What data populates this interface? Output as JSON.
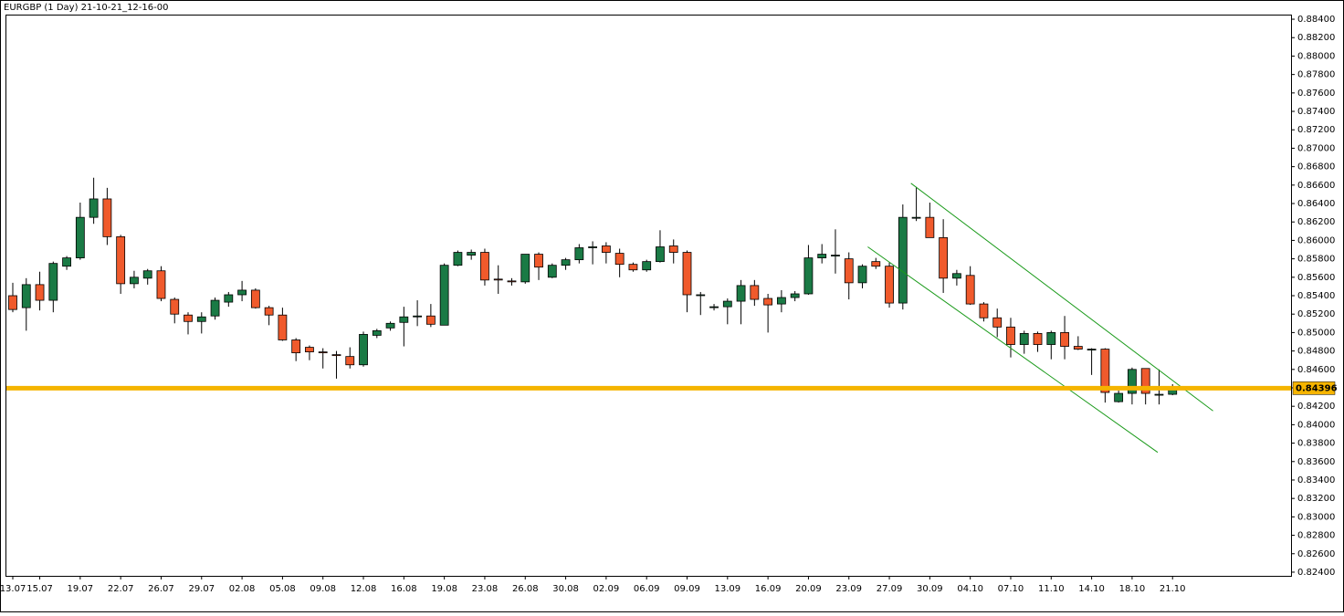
{
  "chart_data": {
    "type": "candlestick",
    "title": "EURGBP (1 Day) 21-10-21_12-16-00",
    "categories": [
      "13.07",
      null,
      "15.07",
      null,
      null,
      "19.07",
      null,
      null,
      "22.07",
      null,
      null,
      "26.07",
      null,
      null,
      "29.07",
      null,
      null,
      "02.08",
      null,
      null,
      "05.08",
      null,
      null,
      "09.08",
      null,
      null,
      "12.08",
      null,
      null,
      "16.08",
      null,
      null,
      "19.08",
      null,
      null,
      "23.08",
      null,
      null,
      "26.08",
      null,
      null,
      "30.08",
      null,
      null,
      "02.09",
      null,
      null,
      "06.09",
      null,
      null,
      "09.09",
      null,
      null,
      "13.09",
      null,
      null,
      "16.09",
      null,
      null,
      "20.09",
      null,
      null,
      "23.09",
      null,
      null,
      "27.09",
      null,
      null,
      "30.09",
      null,
      null,
      "04.10",
      null,
      null,
      "07.10",
      null,
      null,
      "11.10",
      null,
      null,
      "14.10",
      null,
      null,
      "18.10",
      null,
      null,
      "21.10"
    ],
    "open": [
      0.854,
      0.8527,
      0.8552,
      0.8535,
      0.8572,
      0.8581,
      0.8625,
      0.8645,
      0.8604,
      0.8553,
      0.8559,
      0.8567,
      0.8536,
      0.8519,
      0.8512,
      0.8518,
      0.8533,
      0.8541,
      0.8546,
      0.8527,
      0.8519,
      0.8492,
      0.8484,
      0.8479,
      0.8476,
      0.8474,
      0.8465,
      0.8497,
      0.8505,
      0.8511,
      0.8518,
      0.8518,
      0.8508,
      0.8573,
      0.8584,
      0.8587,
      0.8558,
      0.8556,
      0.8555,
      0.8585,
      0.856,
      0.8573,
      0.8579,
      0.8593,
      0.8594,
      0.8586,
      0.8574,
      0.8568,
      0.8577,
      0.8594,
      0.8587,
      0.8541,
      0.8528,
      0.8528,
      0.8534,
      0.8551,
      0.8537,
      0.8531,
      0.8538,
      0.8542,
      0.8581,
      0.8584,
      0.858,
      0.8554,
      0.8577,
      0.8572,
      0.8532,
      0.8625,
      0.8625,
      0.8603,
      0.8559,
      0.8562,
      0.8531,
      0.8516,
      0.8506,
      0.8487,
      0.8499,
      0.8487,
      0.85,
      0.8485,
      0.8482,
      0.8482,
      0.8425,
      0.8434,
      0.8461,
      0.8433,
      0.8433
    ],
    "high": [
      0.8554,
      0.8559,
      0.8566,
      0.8577,
      0.8583,
      0.8641,
      0.8668,
      0.8657,
      0.8606,
      0.8567,
      0.8569,
      0.8572,
      0.8538,
      0.8522,
      0.8522,
      0.8538,
      0.8544,
      0.8556,
      0.8548,
      0.8529,
      0.8527,
      0.8494,
      0.8486,
      0.8483,
      0.848,
      0.8484,
      0.8501,
      0.8504,
      0.8512,
      0.8528,
      0.8535,
      0.8531,
      0.8575,
      0.8589,
      0.859,
      0.8591,
      0.8573,
      0.8559,
      0.8585,
      0.8587,
      0.8575,
      0.8581,
      0.8596,
      0.8599,
      0.8598,
      0.8591,
      0.8576,
      0.8579,
      0.8611,
      0.8601,
      0.8589,
      0.8544,
      0.8531,
      0.8537,
      0.8557,
      0.8557,
      0.8542,
      0.8546,
      0.8545,
      0.8595,
      0.8596,
      0.8612,
      0.8587,
      0.8574,
      0.8581,
      0.8576,
      0.8639,
      0.8658,
      0.8641,
      0.8623,
      0.8568,
      0.8572,
      0.8533,
      0.8526,
      0.8516,
      0.8502,
      0.8501,
      0.8502,
      0.8518,
      0.8496,
      0.8483,
      0.8483,
      0.8437,
      0.8462,
      0.8461,
      0.846,
      0.8444
    ],
    "low": [
      0.8522,
      0.8502,
      0.8524,
      0.8522,
      0.8568,
      0.8579,
      0.8618,
      0.8595,
      0.8542,
      0.8548,
      0.8552,
      0.8534,
      0.851,
      0.8498,
      0.8499,
      0.8514,
      0.8528,
      0.8534,
      0.8526,
      0.8508,
      0.8491,
      0.8469,
      0.847,
      0.8461,
      0.845,
      0.8461,
      0.8463,
      0.8494,
      0.8502,
      0.8485,
      0.8507,
      0.8506,
      0.8508,
      0.8572,
      0.8579,
      0.8551,
      0.8542,
      0.8551,
      0.8553,
      0.8557,
      0.8559,
      0.8568,
      0.8575,
      0.8574,
      0.8575,
      0.856,
      0.8566,
      0.8566,
      0.8576,
      0.8575,
      0.8522,
      0.8519,
      0.8524,
      0.8509,
      0.8509,
      0.8529,
      0.85,
      0.8522,
      0.8534,
      0.8541,
      0.8575,
      0.8564,
      0.8536,
      0.8548,
      0.8569,
      0.8527,
      0.8525,
      0.8621,
      0.8603,
      0.8543,
      0.8551,
      0.853,
      0.8512,
      0.8495,
      0.8473,
      0.8477,
      0.8479,
      0.8471,
      0.8471,
      0.8481,
      0.8454,
      0.8424,
      0.8424,
      0.8422,
      0.8422,
      0.8422,
      0.8432
    ],
    "close": [
      0.8525,
      0.8552,
      0.8535,
      0.8575,
      0.8581,
      0.8625,
      0.8645,
      0.8604,
      0.8553,
      0.856,
      0.8567,
      0.8537,
      0.852,
      0.8512,
      0.8517,
      0.8535,
      0.8541,
      0.8546,
      0.8527,
      0.8519,
      0.8492,
      0.8478,
      0.8479,
      0.8478,
      0.8475,
      0.8465,
      0.8498,
      0.8502,
      0.851,
      0.8517,
      0.8518,
      0.8509,
      0.8573,
      0.8587,
      0.8587,
      0.8557,
      0.8557,
      0.8555,
      0.8585,
      0.8571,
      0.8573,
      0.8579,
      0.8592,
      0.8593,
      0.8587,
      0.8574,
      0.8568,
      0.8577,
      0.8593,
      0.8587,
      0.8541,
      0.8541,
      0.8528,
      0.8534,
      0.8551,
      0.8536,
      0.853,
      0.8538,
      0.8542,
      0.8581,
      0.8585,
      0.8584,
      0.8554,
      0.8572,
      0.8572,
      0.8532,
      0.8625,
      0.8625,
      0.8603,
      0.8559,
      0.8564,
      0.8531,
      0.8516,
      0.8506,
      0.8487,
      0.8499,
      0.8487,
      0.85,
      0.8485,
      0.8482,
      0.8482,
      0.8435,
      0.8434,
      0.846,
      0.8434,
      0.8433,
      0.844
    ],
    "up_color": "#1a7a45",
    "down_color": "#f05a2c",
    "price_line": 0.84396,
    "price_line_color": "#f5b400",
    "channel": [
      {
        "x": [
          66.6,
          89.0
        ],
        "y": [
          0.8662,
          0.8415
        ]
      },
      {
        "x": [
          63.4,
          84.9
        ],
        "y": [
          0.8593,
          0.837
        ]
      }
    ],
    "channel_color": "#1a9a1a",
    "ylim": [
      0.8236,
      0.8845
    ],
    "yticks": [
      {
        "value": 0.824,
        "label": "0.82400"
      },
      {
        "value": 0.826,
        "label": "0.82600"
      },
      {
        "value": 0.828,
        "label": "0.82800"
      },
      {
        "value": 0.83,
        "label": "0.83000"
      },
      {
        "value": 0.832,
        "label": "0.83200"
      },
      {
        "value": 0.834,
        "label": "0.83400"
      },
      {
        "value": 0.836,
        "label": "0.83600"
      },
      {
        "value": 0.838,
        "label": "0.83800"
      },
      {
        "value": 0.84,
        "label": "0.84000"
      },
      {
        "value": 0.842,
        "label": "0.84200"
      },
      {
        "value": 0.844,
        "label": "0.84400"
      },
      {
        "value": 0.846,
        "label": "0.84600"
      },
      {
        "value": 0.848,
        "label": "0.84800"
      },
      {
        "value": 0.85,
        "label": "0.85000"
      },
      {
        "value": 0.852,
        "label": "0.85200"
      },
      {
        "value": 0.854,
        "label": "0.85400"
      },
      {
        "value": 0.856,
        "label": "0.85600"
      },
      {
        "value": 0.858,
        "label": "0.85800"
      },
      {
        "value": 0.86,
        "label": "0.86000"
      },
      {
        "value": 0.862,
        "label": "0.86200"
      },
      {
        "value": 0.864,
        "label": "0.86400"
      },
      {
        "value": 0.866,
        "label": "0.86600"
      },
      {
        "value": 0.868,
        "label": "0.86800"
      },
      {
        "value": 0.87,
        "label": "0.87000"
      },
      {
        "value": 0.872,
        "label": "0.87200"
      },
      {
        "value": 0.874,
        "label": "0.87400"
      },
      {
        "value": 0.876,
        "label": "0.87600"
      },
      {
        "value": 0.878,
        "label": "0.87800"
      },
      {
        "value": 0.88,
        "label": "0.88000"
      },
      {
        "value": 0.882,
        "label": "0.88200"
      },
      {
        "value": 0.884,
        "label": "0.88400"
      }
    ]
  }
}
